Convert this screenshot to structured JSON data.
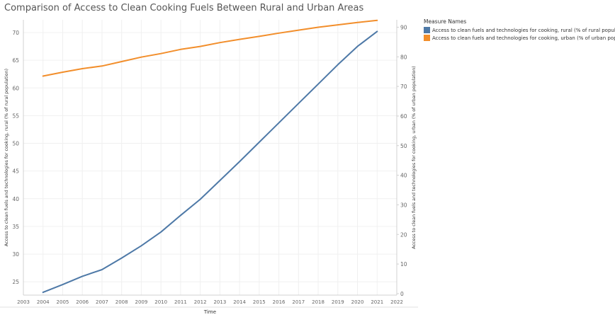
{
  "title": "Comparison of Access to Clean Cooking Fuels Between Rural and Urban Areas",
  "legend": {
    "title": "Measure Names",
    "items": [
      {
        "label": "Access to clean fuels and technologies for cooking, rural (% of rural population)",
        "color": "#4e79a7"
      },
      {
        "label": "Access to clean fuels and technologies for cooking, urban (% of urban population)",
        "color": "#f28e2b"
      }
    ]
  },
  "chart_data": {
    "type": "line",
    "title": "Comparison of Access to Clean Cooking Fuels Between Rural and Urban Areas",
    "xlabel": "Time",
    "ylabel_left": "Access to clean fuels and technologies for cooking, rural (% of rural population)",
    "ylabel_right": "Access to clean fuels and technologies for cooking, urban (% of urban population)",
    "x": [
      2004,
      2005,
      2006,
      2007,
      2008,
      2009,
      2010,
      2011,
      2012,
      2013,
      2014,
      2015,
      2016,
      2017,
      2018,
      2019,
      2020,
      2021
    ],
    "x_ticks": [
      "2003",
      "2004",
      "2005",
      "2006",
      "2007",
      "2008",
      "2009",
      "2010",
      "2011",
      "2012",
      "2013",
      "2014",
      "2015",
      "2016",
      "2017",
      "2018",
      "2019",
      "2020",
      "2021",
      "2022"
    ],
    "xlim": [
      2003,
      2022
    ],
    "y_left_ticks": [
      "25",
      "30",
      "35",
      "40",
      "45",
      "50",
      "55",
      "60",
      "65",
      "70"
    ],
    "y_left_lim": [
      22.6,
      72.3
    ],
    "y_right_ticks": [
      "0",
      "10",
      "20",
      "30",
      "40",
      "50",
      "60",
      "70",
      "80",
      "90"
    ],
    "y_right_lim": [
      -0.5,
      92.5
    ],
    "grid": true,
    "legend_position": "top-right",
    "series": [
      {
        "name": "Access to clean fuels and technologies for cooking, rural (% of rural population)",
        "axis": "left",
        "color": "#4e79a7",
        "values": [
          23.1,
          24.5,
          26.0,
          27.2,
          29.3,
          31.5,
          34.0,
          37.0,
          39.9,
          43.3,
          46.7,
          50.2,
          53.7,
          57.2,
          60.7,
          64.2,
          67.5,
          70.2
        ]
      },
      {
        "name": "Access to clean fuels and technologies for cooking, urban (% of urban population)",
        "axis": "right",
        "color": "#f28e2b",
        "values": [
          73.5,
          74.8,
          76.0,
          76.9,
          78.4,
          79.9,
          81.1,
          82.5,
          83.5,
          84.8,
          85.9,
          86.9,
          88.0,
          89.0,
          90.0,
          90.8,
          91.6,
          92.3
        ]
      }
    ]
  }
}
